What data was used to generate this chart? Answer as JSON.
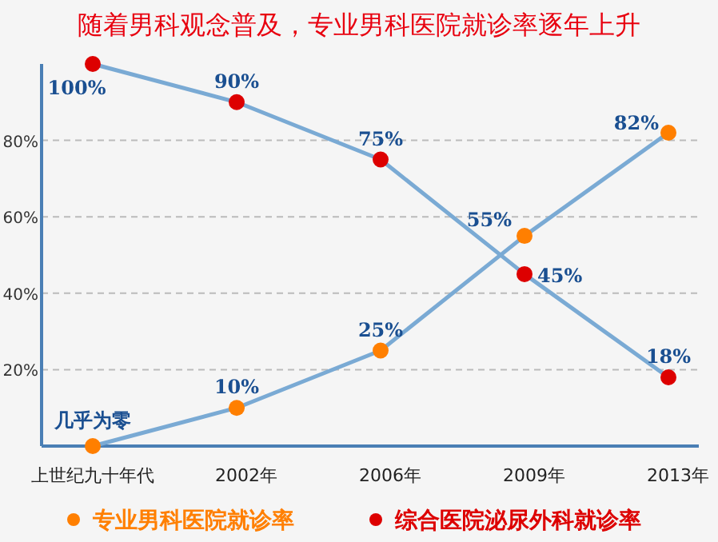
{
  "chart_data": {
    "type": "line",
    "title": "随着男科观念普及，专业男科医院就诊率逐年上升",
    "categories": [
      "上世纪九十年代",
      "2002年",
      "2006年",
      "2009年",
      "2013年"
    ],
    "series": [
      {
        "name": "专业男科医院就诊率",
        "color": "#ff7f00",
        "values": [
          0,
          10,
          25,
          55,
          82
        ],
        "value_labels": [
          "几乎为零",
          "10%",
          "25%",
          "55%",
          "82%"
        ]
      },
      {
        "name": "综合医院泌尿外科就诊率",
        "color": "#dd0000",
        "values": [
          100,
          90,
          75,
          45,
          18
        ],
        "value_labels": [
          "100%",
          "90%",
          "75%",
          "45%",
          "18%"
        ]
      }
    ],
    "ylim": [
      0,
      100
    ],
    "yticks": [
      {
        "value": 20,
        "label": "20%"
      },
      {
        "value": 40,
        "label": "40%"
      },
      {
        "value": 60,
        "label": "60%"
      },
      {
        "value": 80,
        "label": "80%"
      }
    ],
    "grid": "y",
    "legend": "bottom",
    "marker": "circle",
    "line_style": "solid"
  }
}
